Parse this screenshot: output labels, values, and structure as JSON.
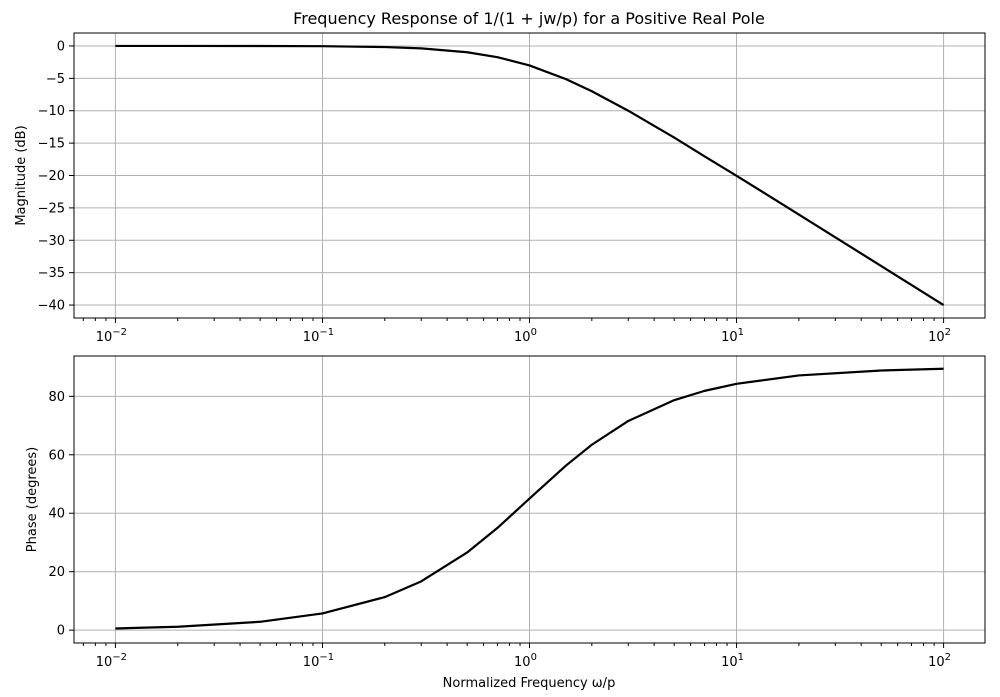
{
  "chart_data": [
    {
      "type": "line",
      "title": "Frequency Response of 1/(1 + jw/p) for a Positive Real Pole",
      "xlabel": "",
      "ylabel": "Magnitude (dB)",
      "xscale": "log",
      "xlim": [
        0.01,
        100
      ],
      "ylim": [
        -42,
        2
      ],
      "grid": true,
      "x_ticks": [
        {
          "value": 0.01,
          "base": "10",
          "exp": "−2"
        },
        {
          "value": 0.1,
          "base": "10",
          "exp": "−1"
        },
        {
          "value": 1,
          "base": "10",
          "exp": "0"
        },
        {
          "value": 10,
          "base": "10",
          "exp": "1"
        },
        {
          "value": 100,
          "base": "10",
          "exp": "2"
        }
      ],
      "y_ticks": [
        {
          "value": 0,
          "label": "0"
        },
        {
          "value": -5,
          "label": "−5"
        },
        {
          "value": -10,
          "label": "−10"
        },
        {
          "value": -15,
          "label": "−15"
        },
        {
          "value": -20,
          "label": "−20"
        },
        {
          "value": -25,
          "label": "−25"
        },
        {
          "value": -30,
          "label": "−30"
        },
        {
          "value": -35,
          "label": "−35"
        },
        {
          "value": -40,
          "label": "−40"
        }
      ],
      "series": [
        {
          "color": "#000000",
          "x": [
            0.01,
            0.02,
            0.05,
            0.1,
            0.2,
            0.3,
            0.5,
            0.7,
            1,
            1.5,
            2,
            3,
            5,
            7,
            10,
            20,
            50,
            100
          ],
          "y": [
            0,
            0,
            -0.01,
            -0.04,
            -0.17,
            -0.37,
            -0.97,
            -1.73,
            -3.01,
            -5.12,
            -6.99,
            -10.0,
            -14.15,
            -17.03,
            -20.04,
            -26.03,
            -33.98,
            -40.0
          ]
        }
      ]
    },
    {
      "type": "line",
      "title": "",
      "xlabel": "Normalized Frequency ω/p",
      "ylabel": "Phase (degrees)",
      "xscale": "log",
      "xlim": [
        0.01,
        100
      ],
      "ylim": [
        -4.4,
        93.8
      ],
      "grid": true,
      "x_ticks": [
        {
          "value": 0.01,
          "base": "10",
          "exp": "−2"
        },
        {
          "value": 0.1,
          "base": "10",
          "exp": "−1"
        },
        {
          "value": 1,
          "base": "10",
          "exp": "0"
        },
        {
          "value": 10,
          "base": "10",
          "exp": "1"
        },
        {
          "value": 100,
          "base": "10",
          "exp": "2"
        }
      ],
      "y_ticks": [
        {
          "value": 0,
          "label": "0"
        },
        {
          "value": 20,
          "label": "20"
        },
        {
          "value": 40,
          "label": "40"
        },
        {
          "value": 60,
          "label": "60"
        },
        {
          "value": 80,
          "label": "80"
        }
      ],
      "series": [
        {
          "color": "#000000",
          "x": [
            0.01,
            0.02,
            0.05,
            0.1,
            0.2,
            0.3,
            0.5,
            0.7,
            1,
            1.5,
            2,
            3,
            5,
            7,
            10,
            20,
            50,
            100
          ],
          "y": [
            0.57,
            1.15,
            2.86,
            5.71,
            11.31,
            16.7,
            26.57,
            34.99,
            45.0,
            56.31,
            63.43,
            71.57,
            78.69,
            81.87,
            84.29,
            87.14,
            88.85,
            89.43
          ]
        }
      ]
    }
  ]
}
